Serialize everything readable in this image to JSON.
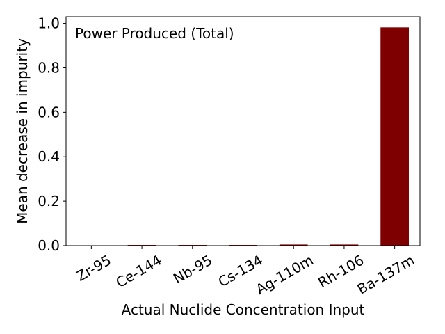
{
  "chart_data": {
    "type": "bar",
    "title": "",
    "annotation": "Power Produced (Total)",
    "xlabel": "Actual Nuclide Concentration Input",
    "ylabel": "Mean decrease in impurity",
    "categories": [
      "Zr-95",
      "Ce-144",
      "Nb-95",
      "Cs-134",
      "Ag-110m",
      "Rh-106",
      "Ba-137m"
    ],
    "values": [
      0.0,
      0.003,
      0.003,
      0.003,
      0.005,
      0.005,
      0.982
    ],
    "ylim": [
      0.0,
      1.03
    ],
    "yticks": [
      0.0,
      0.2,
      0.4,
      0.6,
      0.8,
      1.0
    ],
    "ytick_labels": [
      "0.0",
      "0.2",
      "0.4",
      "0.6",
      "0.8",
      "1.0"
    ],
    "bar_color": "#7f0000",
    "grid": false,
    "legend": "none"
  }
}
